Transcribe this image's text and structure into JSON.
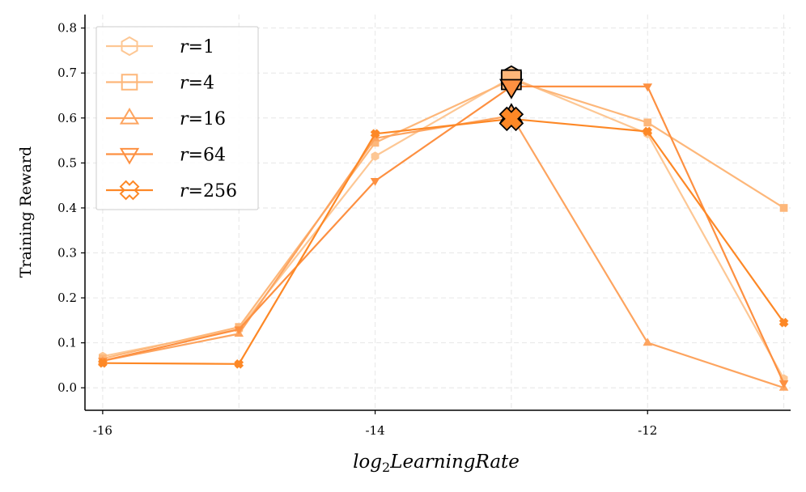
{
  "chart_data": {
    "type": "line",
    "xlabel": "log",
    "xlabel_sub": "2",
    "xlabel_rest": "LearningRate",
    "ylabel": "Training Reward",
    "x": [
      -16,
      -15,
      -14,
      -13,
      -12,
      -11
    ],
    "xlim": [
      -16.13,
      -10.95
    ],
    "ylim": [
      -0.05,
      0.83
    ],
    "xticks": [
      -16,
      -14,
      -12
    ],
    "xtick_labels": [
      "-16",
      "-14",
      "-12"
    ],
    "yticks": [
      0.0,
      0.1,
      0.2,
      0.3,
      0.4,
      0.5,
      0.6,
      0.7,
      0.8
    ],
    "ytick_labels": [
      "0.0",
      "0.1",
      "0.2",
      "0.3",
      "0.4",
      "0.5",
      "0.6",
      "0.7",
      "0.8"
    ],
    "grid": true,
    "legend_position": "top-left",
    "series": [
      {
        "name": "r=1",
        "label_var": "r",
        "label_eq": "=",
        "label_val": "1",
        "marker": "hexagon",
        "color": "#fdc794",
        "values": [
          0.07,
          0.13,
          0.515,
          0.69,
          0.565,
          0.02
        ],
        "best_index": 3
      },
      {
        "name": "r=4",
        "label_var": "r",
        "label_eq": "=",
        "label_val": "4",
        "marker": "square",
        "color": "#fdb77a",
        "values": [
          0.065,
          0.135,
          0.545,
          0.685,
          0.59,
          0.4
        ],
        "best_index": 3
      },
      {
        "name": "r=16",
        "label_var": "r",
        "label_eq": "=",
        "label_val": "16",
        "marker": "triangle-up",
        "color": "#fda45f",
        "values": [
          0.06,
          0.12,
          0.555,
          0.605,
          0.1,
          0.0
        ],
        "best_index": 3
      },
      {
        "name": "r=64",
        "label_var": "r",
        "label_eq": "=",
        "label_val": "64",
        "marker": "triangle-down",
        "color": "#fd9041",
        "values": [
          0.06,
          0.13,
          0.46,
          0.67,
          0.67,
          0.01
        ],
        "best_index": 3
      },
      {
        "name": "r=256",
        "label_var": "r",
        "label_eq": "=",
        "label_val": "256",
        "marker": "x-cross",
        "color": "#fd8826",
        "values": [
          0.055,
          0.053,
          0.565,
          0.598,
          0.57,
          0.145
        ],
        "best_index": 3
      }
    ]
  }
}
